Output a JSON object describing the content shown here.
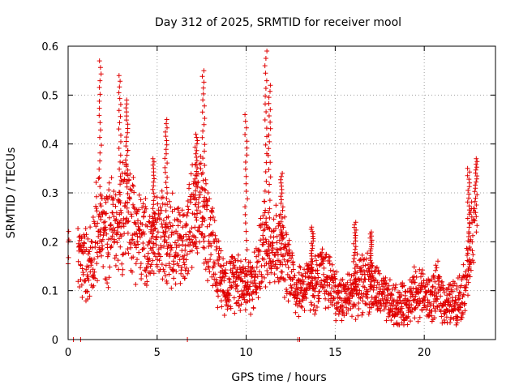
{
  "chart_data": {
    "type": "scatter",
    "title": "Day 312 of 2025, SRMTID for receiver mool",
    "xlabel": "GPS time / hours",
    "ylabel": "SRMTID / TECUs",
    "xlim": [
      0,
      24
    ],
    "ylim": [
      0,
      0.6
    ],
    "xticks": [
      0,
      5,
      10,
      15,
      20
    ],
    "yticks": [
      0,
      0.1,
      0.2,
      0.3,
      0.4,
      0.5,
      0.6
    ],
    "xtick_labels": [
      "0",
      "5",
      "10",
      "15",
      "20"
    ],
    "ytick_labels": [
      "0",
      "0.1",
      "0.2",
      "0.3",
      "0.4",
      "0.5",
      "0.6"
    ],
    "grid": true,
    "marker": "+",
    "color": "#e00000",
    "zero_points": [
      0.3,
      0.7,
      6.7,
      12.9,
      13.0
    ],
    "trend": [
      [
        0.0,
        0.17
      ],
      [
        0.5,
        0.17
      ],
      [
        0.8,
        0.16
      ],
      [
        1.0,
        0.15
      ],
      [
        1.3,
        0.17
      ],
      [
        1.6,
        0.22
      ],
      [
        1.9,
        0.22
      ],
      [
        2.2,
        0.21
      ],
      [
        2.5,
        0.24
      ],
      [
        2.8,
        0.22
      ],
      [
        3.2,
        0.29
      ],
      [
        3.6,
        0.25
      ],
      [
        4.0,
        0.21
      ],
      [
        4.5,
        0.19
      ],
      [
        5.0,
        0.2
      ],
      [
        5.5,
        0.23
      ],
      [
        6.0,
        0.2
      ],
      [
        6.5,
        0.19
      ],
      [
        7.0,
        0.25
      ],
      [
        7.5,
        0.25
      ],
      [
        8.0,
        0.22
      ],
      [
        8.5,
        0.13
      ],
      [
        9.0,
        0.11
      ],
      [
        9.5,
        0.13
      ],
      [
        10.0,
        0.11
      ],
      [
        10.5,
        0.12
      ],
      [
        11.0,
        0.2
      ],
      [
        11.5,
        0.2
      ],
      [
        12.0,
        0.17
      ],
      [
        12.4,
        0.16
      ],
      [
        12.8,
        0.1
      ],
      [
        13.3,
        0.11
      ],
      [
        13.8,
        0.11
      ],
      [
        14.3,
        0.13
      ],
      [
        14.8,
        0.12
      ],
      [
        15.2,
        0.08
      ],
      [
        15.8,
        0.09
      ],
      [
        16.3,
        0.11
      ],
      [
        16.8,
        0.12
      ],
      [
        17.3,
        0.1
      ],
      [
        17.8,
        0.08
      ],
      [
        18.3,
        0.07
      ],
      [
        18.8,
        0.07
      ],
      [
        19.3,
        0.09
      ],
      [
        19.8,
        0.1
      ],
      [
        20.3,
        0.08
      ],
      [
        20.8,
        0.1
      ],
      [
        21.3,
        0.07
      ],
      [
        21.8,
        0.08
      ],
      [
        22.2,
        0.1
      ],
      [
        22.5,
        0.16
      ],
      [
        22.8,
        0.22
      ]
    ],
    "peaks": [
      [
        1.8,
        0.57
      ],
      [
        2.9,
        0.54
      ],
      [
        3.3,
        0.49
      ],
      [
        4.8,
        0.37
      ],
      [
        5.5,
        0.45
      ],
      [
        7.2,
        0.42
      ],
      [
        7.6,
        0.55
      ],
      [
        10.0,
        0.46
      ],
      [
        11.1,
        0.59
      ],
      [
        11.3,
        0.52
      ],
      [
        12.0,
        0.34
      ],
      [
        13.7,
        0.23
      ],
      [
        16.1,
        0.24
      ],
      [
        17.0,
        0.22
      ],
      [
        22.5,
        0.35
      ],
      [
        22.9,
        0.37
      ]
    ],
    "seed": 312
  }
}
